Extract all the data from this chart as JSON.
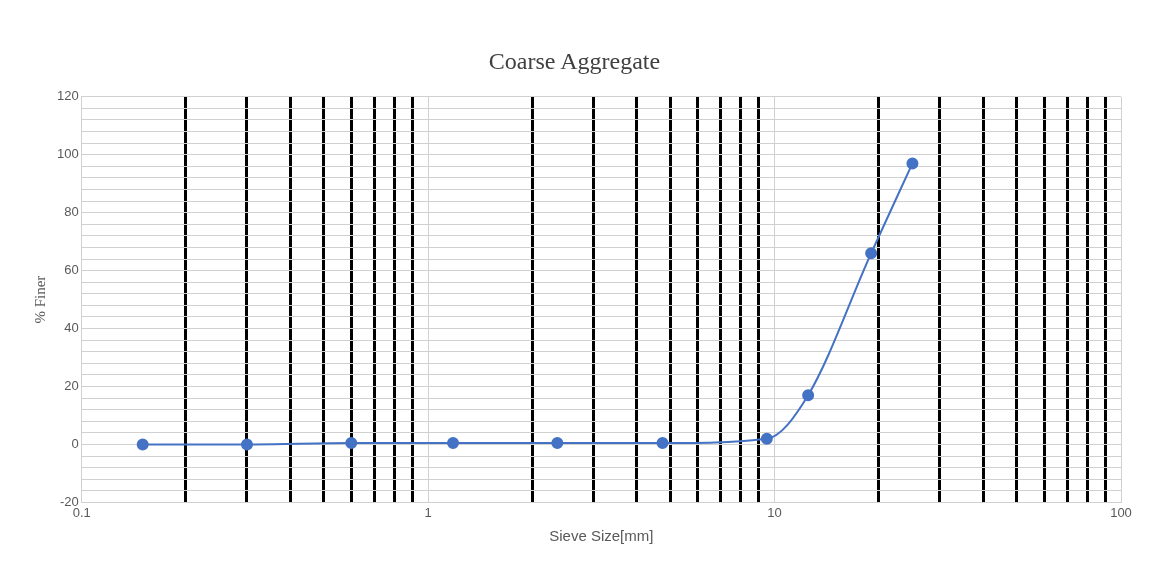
{
  "chart_data": {
    "type": "line",
    "title": "Coarse Aggregate",
    "xlabel": "Sieve Size[mm]",
    "ylabel": "% Finer",
    "x": [
      0.15,
      0.3,
      0.6,
      1.18,
      2.36,
      4.75,
      9.5,
      12.5,
      19,
      25
    ],
    "series": [
      {
        "color": "#4472c4",
        "values": [
          0,
          0,
          0.5,
          0.5,
          0.5,
          0.5,
          2,
          17,
          66,
          97
        ]
      }
    ],
    "log": "x",
    "xlim": [
      0.1,
      100
    ],
    "xticks": [
      0.1,
      {
        "value": 0.2,
        "label": null
      },
      {
        "value": 0.3,
        "label": null
      },
      {
        "value": 0.4,
        "label": null
      },
      {
        "value": 0.5,
        "label": null
      },
      {
        "value": 0.6,
        "label": null
      },
      {
        "value": 0.7,
        "label": null
      },
      {
        "value": 0.8,
        "label": null
      },
      {
        "value": 0.9,
        "label": null
      },
      1,
      {
        "value": 2,
        "label": null
      },
      {
        "value": 3,
        "label": null
      },
      {
        "value": 4,
        "label": null
      },
      {
        "value": 5,
        "label": null
      },
      {
        "value": 6,
        "label": null
      },
      {
        "value": 7,
        "label": null
      },
      {
        "value": 8,
        "label": null
      },
      {
        "value": 9,
        "label": null
      },
      10,
      {
        "value": 20,
        "label": null
      },
      {
        "value": 30,
        "label": null
      },
      {
        "value": 40,
        "label": null
      },
      {
        "value": 50,
        "label": null
      },
      {
        "value": 60,
        "label": null
      },
      {
        "value": 70,
        "label": null
      },
      {
        "value": 80,
        "label": null
      },
      {
        "value": 90,
        "label": null
      },
      100
    ],
    "ylim": [
      -20,
      120
    ],
    "yticks": [
      -20,
      {
        "value": -16,
        "label": null
      },
      {
        "value": -12,
        "label": null
      },
      {
        "value": -8,
        "label": null
      },
      {
        "value": -4,
        "label": null
      },
      0,
      {
        "value": 4,
        "label": null
      },
      {
        "value": 8,
        "label": null
      },
      {
        "value": 12,
        "label": null
      },
      {
        "value": 16,
        "label": null
      },
      20,
      {
        "value": 24,
        "label": null
      },
      {
        "value": 28,
        "label": null
      },
      {
        "value": 32,
        "label": null
      },
      {
        "value": 36,
        "label": null
      },
      40,
      {
        "value": 44,
        "label": null
      },
      {
        "value": 48,
        "label": null
      },
      {
        "value": 52,
        "label": null
      },
      {
        "value": 56,
        "label": null
      },
      60,
      {
        "value": 64,
        "label": null
      },
      {
        "value": 68,
        "label": null
      },
      {
        "value": 72,
        "label": null
      },
      {
        "value": 76,
        "label": null
      },
      80,
      {
        "value": 84,
        "label": null
      },
      {
        "value": 88,
        "label": null
      },
      {
        "value": 92,
        "label": null
      },
      {
        "value": 96,
        "label": null
      },
      100,
      {
        "value": 104,
        "label": null
      },
      {
        "value": 108,
        "label": null
      },
      {
        "value": 112,
        "label": null
      },
      {
        "value": 116,
        "label": null
      },
      120
    ],
    "grid": true,
    "marker": "circle",
    "line_style": "solid"
  }
}
